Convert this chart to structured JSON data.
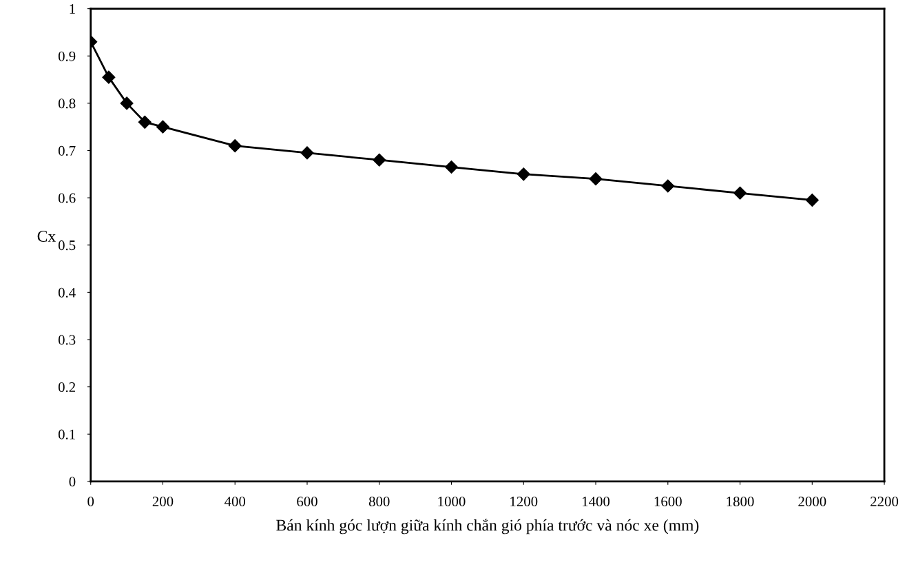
{
  "chart_data": {
    "type": "line",
    "xlabel": "Bán kính góc lượn giữa kính chắn gió phía trước và nóc xe (mm)",
    "ylabel": "Cx",
    "x": [
      0,
      50,
      100,
      150,
      200,
      400,
      600,
      800,
      1000,
      1200,
      1400,
      1600,
      1800,
      2000
    ],
    "series": [
      {
        "color": "#000000",
        "values": [
          0.93,
          0.855,
          0.8,
          0.76,
          0.75,
          0.71,
          0.695,
          0.68,
          0.665,
          0.65,
          0.64,
          0.625,
          0.61,
          0.595
        ]
      }
    ],
    "xlim": [
      0,
      2200
    ],
    "ylim": [
      0,
      1
    ],
    "xticks": [
      0,
      200,
      400,
      600,
      800,
      1000,
      1200,
      1400,
      1600,
      1800,
      2000,
      2200
    ],
    "yticks": [
      0,
      0.1,
      0.2,
      0.3,
      0.4,
      0.5,
      0.6,
      0.7,
      0.8,
      0.9,
      1
    ],
    "marker": "diamond",
    "line_style": "solid",
    "grid": false,
    "legend": false
  }
}
